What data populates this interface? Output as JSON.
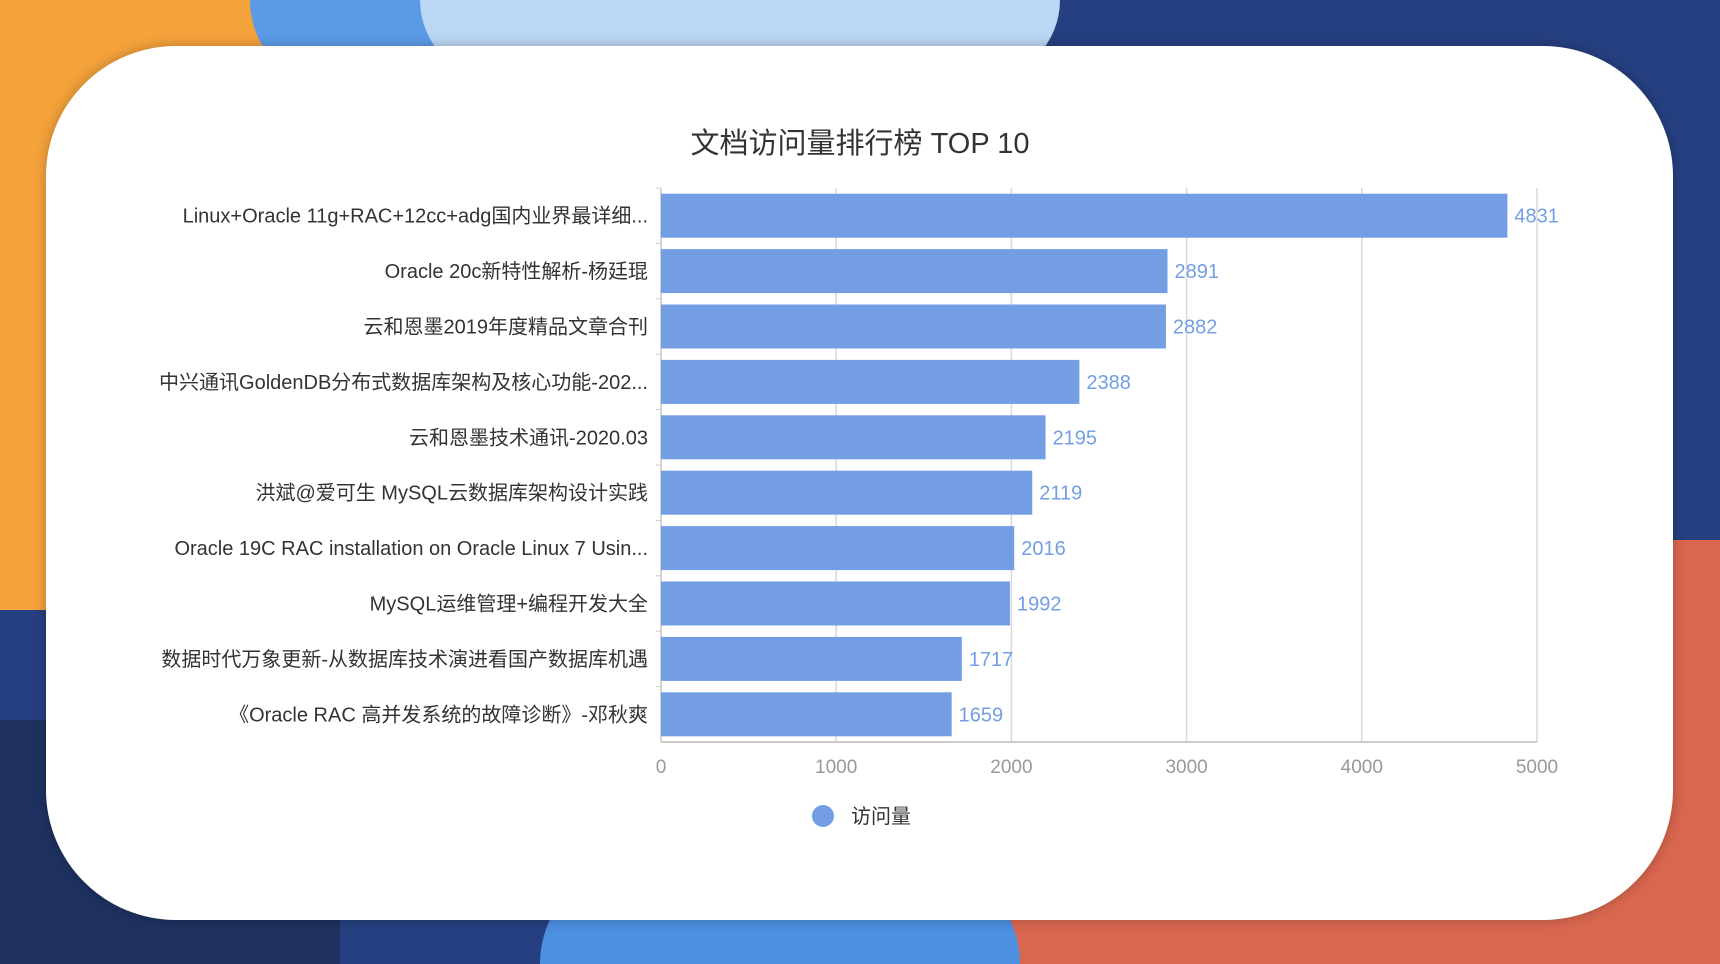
{
  "colors": {
    "bar": "#739ee3",
    "value_label": "#739ee3",
    "grid": "#d9d9d9",
    "text": "#333333",
    "axis_text": "#999999"
  },
  "chart_data": {
    "type": "bar",
    "orientation": "horizontal",
    "title": "文档访问量排行榜 TOP 10",
    "categories": [
      "Linux+Oracle 11g+RAC+12cc+adg国内业界最详细...",
      "Oracle 20c新特性解析-杨廷琨",
      "云和恩墨2019年度精品文章合刊",
      "中兴通讯GoldenDB分布式数据库架构及核心功能-202...",
      "云和恩墨技术通讯-2020.03",
      "洪斌@爱可生  MySQL云数据库架构设计实践",
      "Oracle 19C RAC installation on Oracle Linux 7 Usin...",
      "MySQL运维管理+编程开发大全",
      "数据时代万象更新-从数据库技术演进看国产数据库机遇",
      "《Oracle  RAC 高并发系统的故障诊断》-邓秋爽"
    ],
    "series": [
      {
        "name": "访问量",
        "values": [
          4831,
          2891,
          2882,
          2388,
          2195,
          2119,
          2016,
          1992,
          1717,
          1659
        ]
      }
    ],
    "xlim": [
      0,
      5000
    ],
    "xticks": [
      "0",
      "1000",
      "2000",
      "3000",
      "4000",
      "5000"
    ],
    "grid": true,
    "legend_position": "bottom"
  }
}
